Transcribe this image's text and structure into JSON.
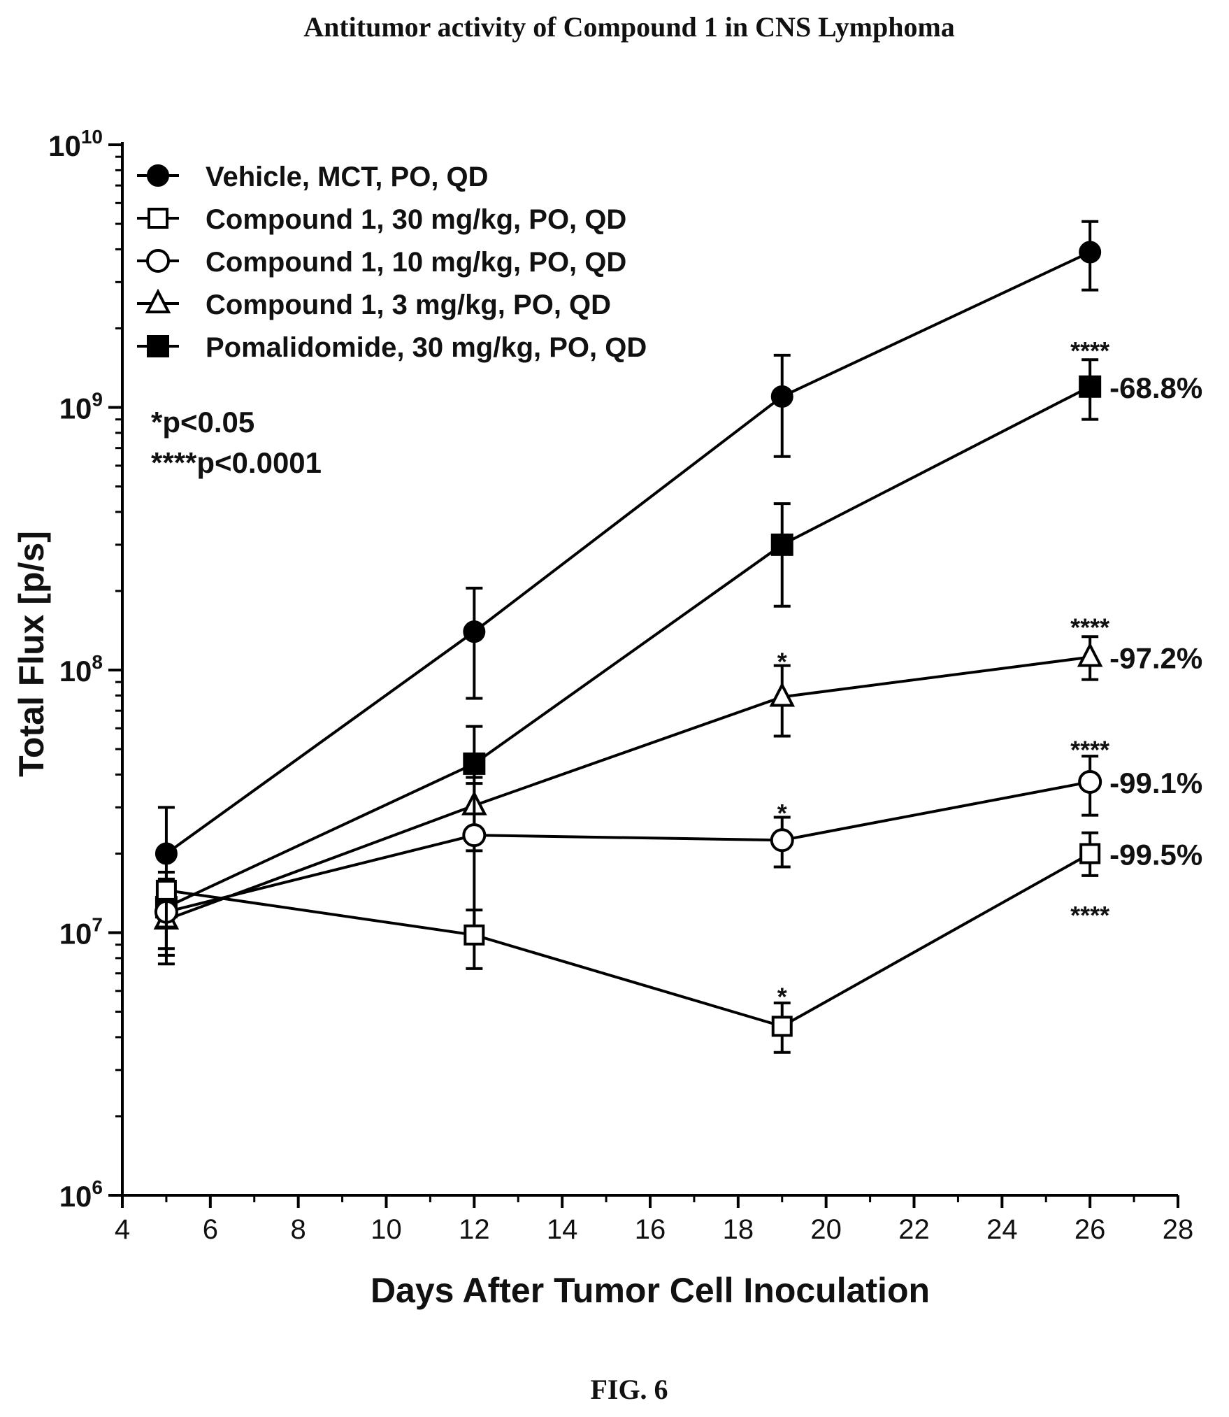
{
  "chart_data": {
    "type": "line",
    "title": "Antitumor activity of Compound 1 in CNS Lymphoma",
    "xlabel": "Days After Tumor Cell Inoculation",
    "ylabel": "Total Flux [p/s]",
    "xlim": [
      4,
      28
    ],
    "ylim": [
      1000000,
      10000000000
    ],
    "yscale": "log",
    "x_ticks": [
      4,
      6,
      8,
      10,
      12,
      14,
      16,
      18,
      20,
      22,
      24,
      26,
      28
    ],
    "y_ticks": [
      {
        "value": 1000000,
        "base": "10",
        "exp": "6"
      },
      {
        "value": 10000000,
        "base": "10",
        "exp": "7"
      },
      {
        "value": 100000000,
        "base": "10",
        "exp": "8"
      },
      {
        "value": 1000000000,
        "base": "10",
        "exp": "9"
      },
      {
        "value": 10000000000,
        "base": "10",
        "exp": "10"
      }
    ],
    "grid": false,
    "legend_position": "top-left",
    "series": [
      {
        "name": "Vehicle, MCT, PO, QD",
        "marker": "filled-circle",
        "x": [
          5,
          12,
          19,
          26
        ],
        "y": [
          20000000,
          140000000,
          1100000000,
          3900000000
        ],
        "y_low": [
          13000000,
          78000000,
          650000000,
          2800000000
        ],
        "y_high": [
          30000000,
          205000000,
          1580000000,
          5100000000
        ]
      },
      {
        "name": "Compound 1, 30 mg/kg, PO, QD",
        "marker": "open-square",
        "x": [
          5,
          12,
          19,
          26
        ],
        "y": [
          14500000,
          9800000,
          4400000,
          20000000
        ],
        "y_low": [
          10500000,
          7300000,
          3500000,
          16500000
        ],
        "y_high": [
          17000000,
          12200000,
          5400000,
          24000000
        ]
      },
      {
        "name": "Compound 1, 10 mg/kg, PO, QD",
        "marker": "open-circle",
        "x": [
          5,
          12,
          19,
          26
        ],
        "y": [
          12000000,
          23500000,
          22500000,
          37500000
        ],
        "y_low": [
          8200000,
          9800000,
          17800000,
          28000000
        ],
        "y_high": [
          15500000,
          37000000,
          27500000,
          47000000
        ]
      },
      {
        "name": "Compound 1, 3 mg/kg, PO, QD",
        "marker": "open-triangle",
        "x": [
          5,
          12,
          19,
          26
        ],
        "y": [
          11200000,
          30500000,
          79000000,
          112000000
        ],
        "y_low": [
          7600000,
          20500000,
          56000000,
          92000000
        ],
        "y_high": [
          14500000,
          41000000,
          104000000,
          134000000
        ]
      },
      {
        "name": "Pomalidomide, 30 mg/kg, PO, QD",
        "marker": "filled-square",
        "x": [
          5,
          12,
          19,
          26
        ],
        "y": [
          12500000,
          44000000,
          300000000,
          1200000000
        ],
        "y_low": [
          8700000,
          39000000,
          175000000,
          900000000
        ],
        "y_high": [
          16000000,
          61000000,
          430000000,
          1520000000
        ]
      }
    ],
    "significance_notes": [
      "*p<0.05",
      "****p<0.0001"
    ],
    "annotations": [
      {
        "text": "****",
        "x": 26,
        "y": 1720000000
      },
      {
        "text": "-68.8%",
        "x": 26,
        "y": 1200000000,
        "kind": "percent"
      },
      {
        "text": "*",
        "x": 19,
        "y": 117000000
      },
      {
        "text": "****",
        "x": 26,
        "y": 152000000
      },
      {
        "text": "-97.2%",
        "x": 26,
        "y": 112000000,
        "kind": "percent"
      },
      {
        "text": "*",
        "x": 19,
        "y": 31000000
      },
      {
        "text": "****",
        "x": 26,
        "y": 52000000
      },
      {
        "text": "-99.1%",
        "x": 26,
        "y": 37500000,
        "kind": "percent"
      },
      {
        "text": "-99.5%",
        "x": 26,
        "y": 20000000,
        "kind": "percent"
      },
      {
        "text": "****",
        "x": 26,
        "y": 12200000
      },
      {
        "text": "*",
        "x": 19,
        "y": 6200000
      }
    ]
  },
  "figure_label": "FIG. 6"
}
